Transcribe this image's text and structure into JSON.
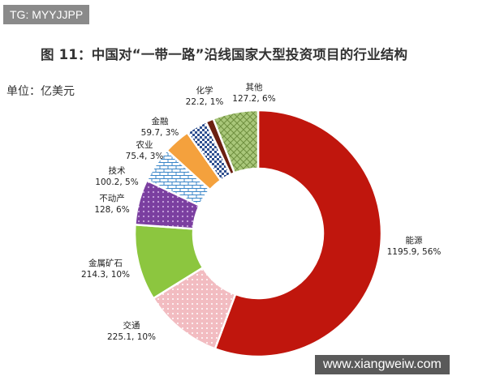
{
  "badge": {
    "text": "TG: MYYJJPP"
  },
  "watermark": {
    "text": "www.xiangweiw.com"
  },
  "chart_data": {
    "type": "pie",
    "donut": true,
    "title": "图 11：中国对“一带一路”沿线国家大型投资项目的行业结构",
    "unit": "单位：亿美元",
    "slices": [
      {
        "name": "能源",
        "value": 1195.9,
        "percent": "56%",
        "label": "1195.9, 56%",
        "color": "#c0160d",
        "pattern": "solid"
      },
      {
        "name": "交通",
        "value": 225.1,
        "percent": "10%",
        "label": "225.1, 10%",
        "color": "#f2bcc1",
        "pattern": "dots"
      },
      {
        "name": "金属矿石",
        "value": 214.3,
        "percent": "10%",
        "label": "214.3, 10%",
        "color": "#8cc63f",
        "pattern": "solid"
      },
      {
        "name": "不动产",
        "value": 128,
        "percent": "6%",
        "label": "128, 6%",
        "color": "#7b3fa0",
        "pattern": "dots"
      },
      {
        "name": "技术",
        "value": 100.2,
        "percent": "5%",
        "label": "100.2, 5%",
        "color": "#3a86c8",
        "pattern": "bricks"
      },
      {
        "name": "农业",
        "value": 75.4,
        "percent": "3%",
        "label": "75.4, 3%",
        "color": "#f4a13d",
        "pattern": "solid"
      },
      {
        "name": "金融",
        "value": 59.7,
        "percent": "3%",
        "label": "59.7, 3%",
        "color": "#2f4f8f",
        "pattern": "checker"
      },
      {
        "name": "化学",
        "value": 22.2,
        "percent": "1%",
        "label": "22.2, 1%",
        "color": "#6b1f12",
        "pattern": "solid"
      },
      {
        "name": "其他",
        "value": 127.2,
        "percent": "6%",
        "label": "127.2, 6%",
        "color": "#7a9a4a",
        "pattern": "diamond"
      }
    ]
  }
}
